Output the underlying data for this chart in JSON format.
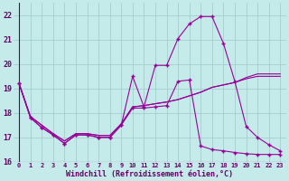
{
  "xlabel": "Windchill (Refroidissement éolien,°C)",
  "xlim": [
    -0.5,
    23.5
  ],
  "ylim": [
    16.0,
    22.5
  ],
  "yticks": [
    16,
    17,
    18,
    19,
    20,
    21,
    22
  ],
  "xticks": [
    0,
    1,
    2,
    3,
    4,
    5,
    6,
    7,
    8,
    9,
    10,
    11,
    12,
    13,
    14,
    15,
    16,
    17,
    18,
    19,
    20,
    21,
    22,
    23
  ],
  "xtick_labels": [
    "0",
    "1",
    "2",
    "3",
    "4",
    "5",
    "6",
    "7",
    "8",
    "9",
    "10",
    "11",
    "12",
    "13",
    "14",
    "15",
    "16",
    "17",
    "18",
    "19",
    "20",
    "21",
    "22",
    "23"
  ],
  "background_color": "#c5eaea",
  "grid_color": "#9ec8c8",
  "line_color": "#990099",
  "line1_x": [
    0,
    1,
    2,
    3,
    4,
    5,
    6,
    7,
    8,
    9,
    10,
    11,
    12,
    13,
    14,
    15,
    16,
    17,
    18,
    19,
    20,
    21,
    22,
    23
  ],
  "line1_y": [
    19.2,
    17.8,
    17.4,
    17.1,
    16.75,
    17.1,
    17.1,
    17.0,
    17.0,
    17.5,
    18.2,
    18.2,
    18.25,
    18.3,
    19.3,
    19.35,
    16.65,
    16.5,
    16.45,
    16.38,
    16.33,
    16.3,
    16.3,
    16.3
  ],
  "line2_x": [
    0,
    1,
    2,
    3,
    4,
    5,
    6,
    7,
    8,
    9,
    10,
    11,
    12,
    13,
    14,
    15,
    16,
    17,
    18,
    19,
    20,
    21,
    22,
    23
  ],
  "line2_y": [
    19.2,
    17.8,
    17.4,
    17.1,
    16.75,
    17.1,
    17.1,
    17.0,
    17.0,
    17.5,
    19.5,
    18.25,
    19.95,
    19.95,
    21.05,
    21.65,
    21.95,
    21.95,
    20.85,
    19.3,
    17.45,
    17.0,
    16.7,
    16.45
  ],
  "line3_x": [
    0,
    1,
    2,
    3,
    4,
    5,
    6,
    7,
    8,
    9,
    10,
    11,
    12,
    13,
    14,
    15,
    16,
    17,
    18,
    19,
    20,
    21,
    22,
    23
  ],
  "line3_y": [
    19.2,
    17.85,
    17.5,
    17.15,
    16.85,
    17.15,
    17.15,
    17.08,
    17.08,
    17.55,
    18.25,
    18.3,
    18.38,
    18.45,
    18.55,
    18.7,
    18.85,
    19.05,
    19.15,
    19.25,
    19.4,
    19.5,
    19.5,
    19.5
  ],
  "line4_x": [
    0,
    1,
    2,
    3,
    4,
    5,
    6,
    7,
    8,
    9,
    10,
    11,
    12,
    13,
    14,
    15,
    16,
    17,
    18,
    19,
    20,
    21,
    22,
    23
  ],
  "line4_y": [
    19.2,
    17.85,
    17.5,
    17.15,
    16.85,
    17.15,
    17.15,
    17.08,
    17.08,
    17.55,
    18.25,
    18.3,
    18.38,
    18.45,
    18.55,
    18.7,
    18.85,
    19.05,
    19.15,
    19.25,
    19.45,
    19.6,
    19.6,
    19.6
  ]
}
